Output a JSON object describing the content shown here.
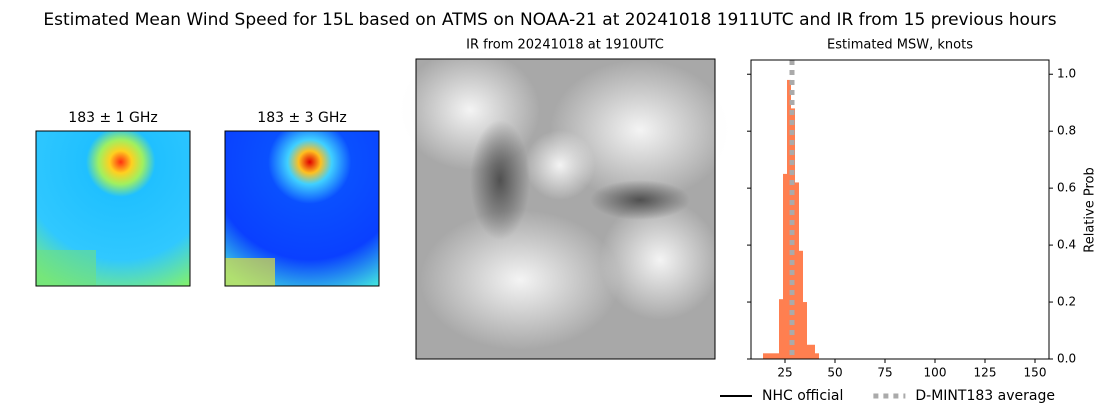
{
  "title": "Estimated Mean Wind Speed for 15L based on ATMS on NOAA-21 at 20241018 1911UTC and IR from 15 previous hours",
  "panels": [
    {
      "title": "183 ± 1 GHz"
    },
    {
      "title": "183 ± 3 GHz"
    },
    {
      "title": "IR from 20241018 at 1910UTC"
    }
  ],
  "chart_data": {
    "type": "histogram",
    "title": "Estimated MSW, knots",
    "y_label": "Relative Prob",
    "bins": [
      14,
      16,
      18,
      20,
      22,
      24,
      26,
      28,
      30,
      32,
      34,
      36,
      38,
      40,
      42
    ],
    "values": [
      0.02,
      0.02,
      0.02,
      0.02,
      0.21,
      0.65,
      0.98,
      0.88,
      0.62,
      0.38,
      0.2,
      0.05,
      0.05,
      0.02
    ],
    "color": "#ff7f50",
    "lines": [
      {
        "name": "NHC official",
        "color": "#000000",
        "style": "solid",
        "value": null
      },
      {
        "name": "D-MINT183 average",
        "color": "#aaaaaa",
        "style": "dotted",
        "value": 28.5
      }
    ],
    "xlim": [
      8,
      157
    ],
    "xticks": [
      25,
      50,
      75,
      100,
      125,
      150
    ],
    "ylim": [
      0,
      1.05
    ],
    "yticks": [
      {
        "value": 0,
        "label": "0.0"
      },
      {
        "value": 0.2,
        "label": "0.2"
      },
      {
        "value": 0.4,
        "label": "0.4"
      },
      {
        "value": 0.6,
        "label": "0.6"
      },
      {
        "value": 0.8,
        "label": "0.8"
      },
      {
        "value": 1.0,
        "label": "1.0"
      }
    ],
    "y_axis_side": "right",
    "legend": "bottom"
  }
}
